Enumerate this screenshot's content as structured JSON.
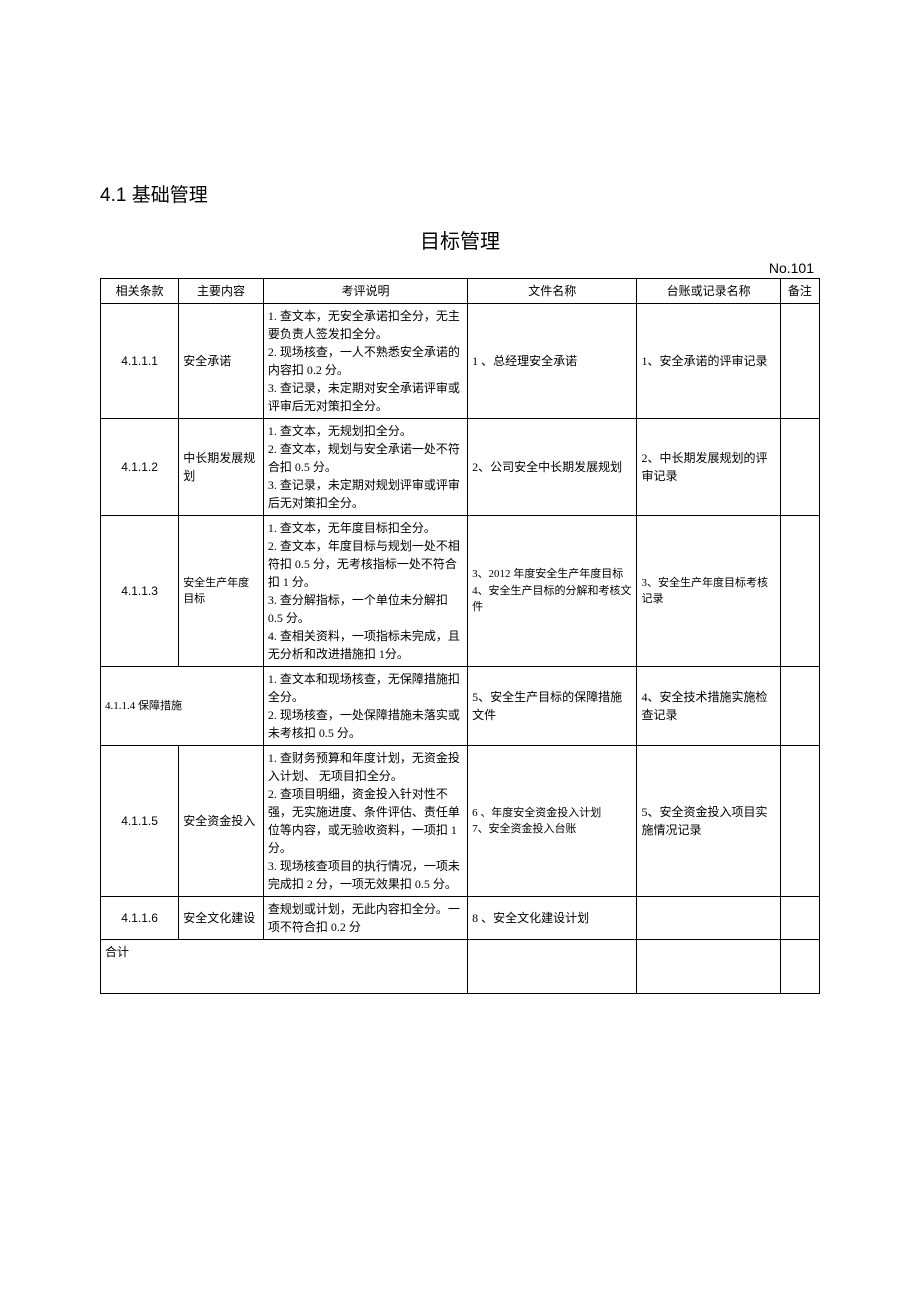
{
  "section_heading_num": "4.1",
  "section_heading_text": "基础管理",
  "title": "目标管理",
  "doc_number": "No.101",
  "headers": {
    "clause": "相关条款",
    "content": "主要内容",
    "desc": "考评说明",
    "file": "文件名称",
    "ledger": "台账或记录名称",
    "remark": "备注"
  },
  "rows": [
    {
      "clause": "4.1.1.1",
      "content": "安全承诺",
      "desc": "1. 查文本，无安全承诺扣全分，无主要负责人签发扣全分。\n2. 现场核查，一人不熟悉安全承诺的内容扣 0.2 分。\n3. 查记录，未定期对安全承诺评审或评审后无对策扣全分。",
      "file": "1 、总经理安全承诺",
      "ledger": "1、安全承诺的评审记录"
    },
    {
      "clause": "4.1.1.2",
      "content": "中长期发展规划",
      "desc": "1. 查文本，无规划扣全分。\n2. 查文本，规划与安全承诺一处不符合扣  0.5 分。\n3. 查记录，未定期对规划评审或评审后无对策扣全分。",
      "file": "2、公司安全中长期发展规划",
      "ledger": "2、中长期发展规划的评审记录"
    },
    {
      "clause": "4.1.1.3",
      "content": "安全生产年度目标",
      "content_small": true,
      "desc": "1. 查文本，无年度目标扣全分。\n2. 查文本，年度目标与规划一处不相符扣 0.5  分，无考核指标一处不符合扣  1 分。\n3. 查分解指标，一个单位未分解扣 0.5 分。\n4. 查相关资料，一项指标未完成，且无分析和改进措施扣 1分。",
      "file": "3、2012 年度安全生产年度目标\n4、安全生产目标的分解和考核文件",
      "file_small": true,
      "ledger": "3、安全生产年度目标考核记录",
      "ledger_small": true
    },
    {
      "clause": "4.1.1.4 保障措施",
      "clause_text": true,
      "content": "",
      "span_clause": true,
      "desc": "1. 查文本和现场核查，无保障措施扣全分。\n2. 现场核查，一处保障措施未落实或未考核扣  0.5 分。",
      "file": "5、安全生产目标的保障措施文件",
      "ledger": "4、安全技术措施实施检查记录"
    },
    {
      "clause": "4.1.1.5",
      "content": "安全资金投入",
      "desc": "1. 查财务预算和年度计划，无资金投入计划、 无项目扣全分。\n2. 查项目明细，资金投入针对性不强，无实施进度、条件评估、责任单位等内容，或无验收资料，一项扣  1 分。\n3. 现场核查项目的执行情况，一项未完成扣 2  分，一项无效果扣 0.5 分。",
      "file": "6 、年度安全资金投入计划\n7、安全资金投入台账",
      "file_small": true,
      "ledger": "5、安全资金投入项目实施情况记录"
    },
    {
      "clause": "4.1.1.6",
      "content": "安全文化建设",
      "desc": "查规划或计划，无此内容扣全分。一项不符合扣  0.2 分",
      "file": "8 、安全文化建设计划",
      "ledger": ""
    }
  ],
  "total_label": "合计"
}
